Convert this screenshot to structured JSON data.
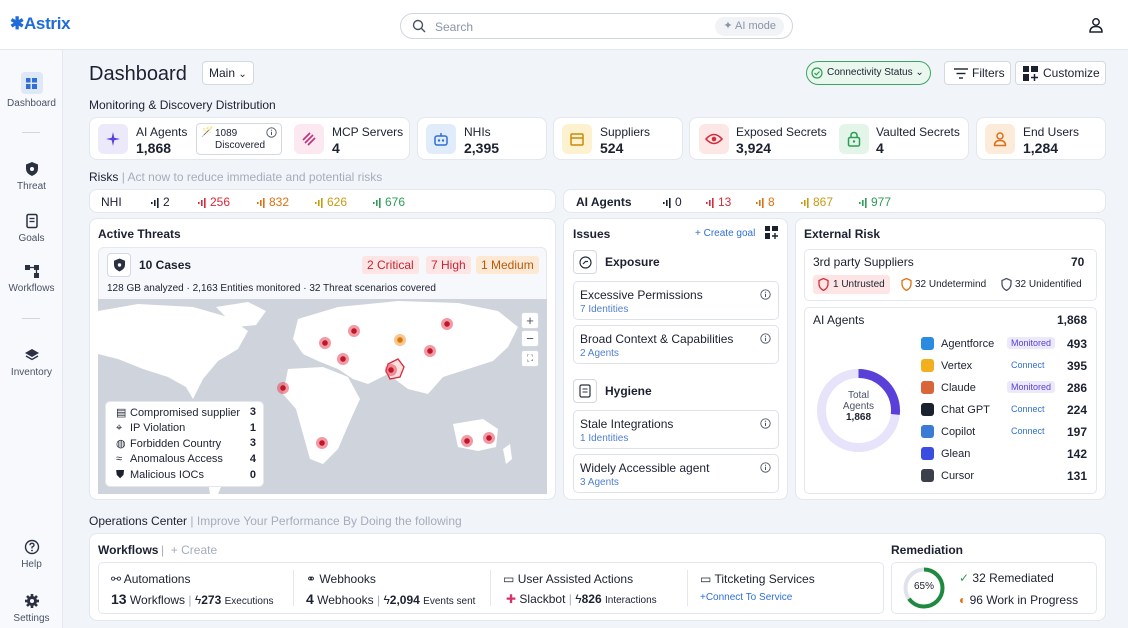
{
  "app": {
    "logo": "✱Astrix",
    "search_placeholder": "Search",
    "ai_mode": "AI mode"
  },
  "sidebar": {
    "items": [
      {
        "label": "Dashboard",
        "icon": "dashboard-icon"
      },
      {
        "label": "Threat",
        "icon": "shield-icon"
      },
      {
        "label": "Goals",
        "icon": "goals-icon"
      },
      {
        "label": "Workflows",
        "icon": "workflows-icon"
      },
      {
        "label": "Inventory",
        "icon": "layers-icon"
      },
      {
        "label": "Help",
        "icon": "help-icon"
      },
      {
        "label": "Settings",
        "icon": "gear-icon"
      }
    ]
  },
  "header": {
    "title": "Dashboard",
    "view_select": "Main",
    "connectivity": "Connectivity Status",
    "filters": "Filters",
    "customize": "Customize"
  },
  "distribution": {
    "label": "Monitoring & Discovery Distribution",
    "ai_agents": {
      "label": "AI Agents",
      "value": "1,868",
      "discovered_count": "1089",
      "discovered_label": "Discovered"
    },
    "mcp": {
      "label": "MCP Servers",
      "value": "4"
    },
    "nhis": {
      "label": "NHIs",
      "value": "2,395"
    },
    "suppliers": {
      "label": "Suppliers",
      "value": "524"
    },
    "exposed": {
      "label": "Exposed Secrets",
      "value": "3,924"
    },
    "vaulted": {
      "label": "Vaulted Secrets",
      "value": "4"
    },
    "endusers": {
      "label": "End Users",
      "value": "1,284"
    }
  },
  "risks": {
    "label": "Risks",
    "sub": "Act now to reduce immediate and potential risks",
    "nhi": {
      "label": "NHI",
      "values": [
        "2",
        "256",
        "832",
        "626",
        "676"
      ]
    },
    "ai": {
      "label": "AI Agents",
      "values": [
        "0",
        "13",
        "8",
        "867",
        "977"
      ]
    },
    "colors": [
      "#1c2130",
      "#d62b3a",
      "#e0700f",
      "#c79a12",
      "#2e9d55"
    ]
  },
  "threats": {
    "title": "Active Threats",
    "cases": "10 Cases",
    "critical": "2 Critical",
    "high": "7 High",
    "medium": "1 Medium",
    "summary": "128 GB analyzed · 2,163 Entities monitored · 32 Threat scenarios covered",
    "legend": [
      {
        "label": "Compromised supplier",
        "value": "3",
        "icon": "building-icon"
      },
      {
        "label": "IP Violation",
        "value": "1",
        "icon": "pin-icon"
      },
      {
        "label": "Forbidden Country",
        "value": "3",
        "icon": "globe-icon"
      },
      {
        "label": "Anomalous Access",
        "value": "4",
        "icon": "pulse-icon"
      },
      {
        "label": "Malicious IOCs",
        "value": "0",
        "icon": "shield-icon"
      }
    ],
    "zoom_in": "+",
    "zoom_out": "−"
  },
  "issues": {
    "title": "Issues",
    "create": "+ Create goal",
    "exposure": "Exposure",
    "hygiene": "Hygiene",
    "items": [
      {
        "title": "Excessive Permissions",
        "sub": "7 Identities"
      },
      {
        "title": "Broad Context & Capabilities",
        "sub": "2 Agents"
      },
      {
        "title": "Stale Integrations",
        "sub": "1 Identities"
      },
      {
        "title": "Widely Accessible agent",
        "sub": "3 Agents"
      }
    ]
  },
  "external": {
    "title": "External Risk",
    "suppliers_label": "3rd party Suppliers",
    "suppliers_value": "70",
    "untrusted": "1 Untrusted",
    "undetermind": "32 Undetermind",
    "unidentified": "32 Unidentified",
    "agents_label": "AI Agents",
    "agents_value": "1,868",
    "donut_label1": "Total",
    "donut_label2": "Agents",
    "donut_value": "1,868",
    "agents": [
      {
        "name": "Agentforce",
        "status": "Monitored",
        "value": "493",
        "color": "#2a8be0"
      },
      {
        "name": "Vertex",
        "status": "Connect",
        "value": "395",
        "color": "#f2b01e"
      },
      {
        "name": "Claude",
        "status": "Monitored",
        "value": "286",
        "color": "#d9653b"
      },
      {
        "name": "Chat GPT",
        "status": "Connect",
        "value": "224",
        "color": "#1c2130"
      },
      {
        "name": "Copilot",
        "status": "Connect",
        "value": "197",
        "color": "#3a7bd5"
      },
      {
        "name": "Glean",
        "status": "",
        "value": "142",
        "color": "#3b4de0"
      },
      {
        "name": "Cursor",
        "status": "",
        "value": "131",
        "color": "#3a3f4b"
      }
    ]
  },
  "ops": {
    "label": "Operations Center",
    "sub": "Improve Your Performance By Doing the following",
    "workflows": "Workflows",
    "create": "+ Create",
    "automations": {
      "label": "Automations",
      "count": "13",
      "count_label": "Workflows",
      "exec": "273",
      "exec_label": "Executions"
    },
    "webhooks": {
      "label": "Webhooks",
      "count": "4",
      "count_label": "Webhooks",
      "events": "2,094",
      "events_label": "Events sent"
    },
    "user_actions": {
      "label": "User Assisted Actions",
      "bot": "Slackbot",
      "inter": "826",
      "inter_label": "Interactions"
    },
    "ticketing": {
      "label": "Titcketing Services",
      "link": "+Connect To Service"
    },
    "remediation": {
      "title": "Remediation",
      "percent": "65%",
      "percent_value": 0.65,
      "remediated": "32 Remediated",
      "progress": "96 Work in Progress"
    }
  }
}
